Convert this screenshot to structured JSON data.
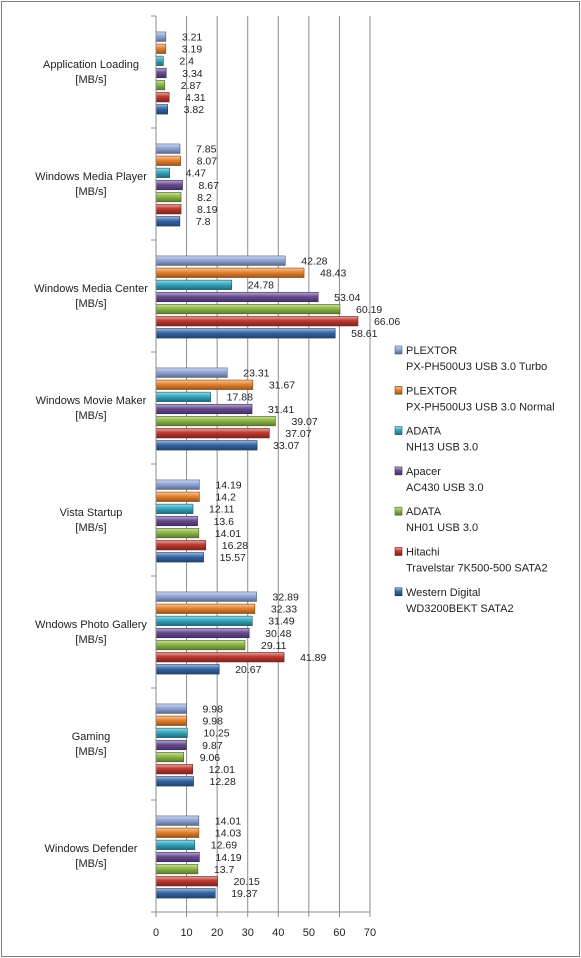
{
  "chart_data": {
    "type": "bar",
    "orientation": "horizontal",
    "categories": [
      {
        "line1": "Application Loading",
        "line2": "[MB/s]"
      },
      {
        "line1": "Windows Media Player",
        "line2": "[MB/s]"
      },
      {
        "line1": "Windows Media Center",
        "line2": "[MB/s]"
      },
      {
        "line1": "Windows Movie Maker",
        "line2": "[MB/s]"
      },
      {
        "line1": "Vista Startup",
        "line2": "[MB/s]"
      },
      {
        "line1": "Wndows Photo Gallery",
        "line2": "[MB/s]"
      },
      {
        "line1": "Gaming",
        "line2": "[MB/s]"
      },
      {
        "line1": "Windows Defender",
        "line2": "[MB/s]"
      }
    ],
    "series": [
      {
        "name": "PLEXTOR PX-PH500U3 USB 3.0 Turbo",
        "legend_line1": "PLEXTOR",
        "legend_line2": "PX-PH500U3 USB 3.0 Turbo",
        "color": "#8EA5D6",
        "values": [
          3.21,
          7.85,
          42.28,
          23.31,
          14.19,
          32.89,
          9.98,
          14.01
        ]
      },
      {
        "name": "PLEXTOR PX-PH500U3 USB 3.0 Normal",
        "legend_line1": "PLEXTOR",
        "legend_line2": "PX-PH500U3 USB 3.0 Normal",
        "color": "#E8822C",
        "values": [
          3.19,
          8.07,
          48.43,
          31.67,
          14.2,
          32.33,
          9.98,
          14.03
        ]
      },
      {
        "name": "ADATA NH13 USB 3.0",
        "legend_line1": "ADATA",
        "legend_line2": "NH13 USB 3.0",
        "color": "#33A7BD",
        "values": [
          2.4,
          4.47,
          24.78,
          17.88,
          12.11,
          31.49,
          10.25,
          12.69
        ]
      },
      {
        "name": "Apacer AC430 USB 3.0",
        "legend_line1": "Apacer",
        "legend_line2": "AC430 USB 3.0",
        "color": "#6A4C94",
        "values": [
          3.34,
          8.67,
          53.04,
          31.41,
          13.6,
          30.48,
          9.87,
          14.19
        ]
      },
      {
        "name": "ADATA NH01 USB 3.0",
        "legend_line1": "ADATA",
        "legend_line2": "NH01 USB 3.0",
        "color": "#8DB845",
        "values": [
          2.87,
          8.2,
          60.19,
          39.07,
          14.01,
          29.11,
          9.06,
          13.7
        ]
      },
      {
        "name": "Hitachi Travelstar 7K500-500 SATA2",
        "legend_line1": "Hitachi",
        "legend_line2": "Travelstar 7K500-500 SATA2",
        "color": "#C0392F",
        "values": [
          4.31,
          8.19,
          66.06,
          37.07,
          16.28,
          41.89,
          12.01,
          20.15
        ]
      },
      {
        "name": "Western Digital WD3200BEKT SATA2",
        "legend_line1": "Western Digital",
        "legend_line2": "WD3200BEKT SATA2",
        "color": "#3566A8",
        "values": [
          3.82,
          7.8,
          58.61,
          33.07,
          15.57,
          20.67,
          12.28,
          19.37
        ]
      }
    ],
    "x_ticks": [
      0,
      10,
      20,
      30,
      40,
      50,
      60,
      70
    ],
    "xlim": [
      0,
      70
    ],
    "grid": "vertical",
    "legend": "right"
  }
}
